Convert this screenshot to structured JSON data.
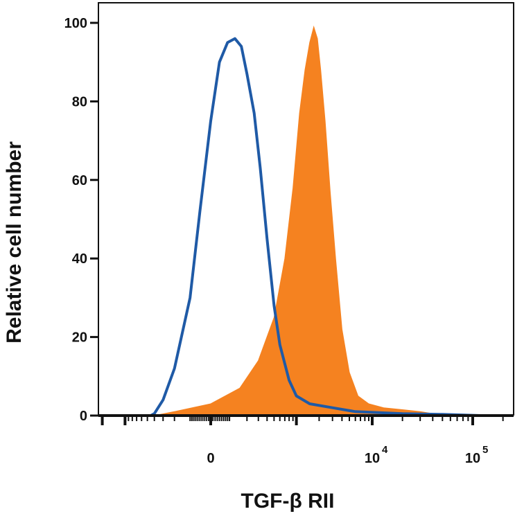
{
  "chart_data": {
    "type": "area",
    "title": "",
    "xlabel": "TGF-β RII",
    "ylabel": "Relative cell number",
    "ylim": [
      0,
      100
    ],
    "x_scale": "biexponential",
    "x_ticks": [
      {
        "value": 0,
        "label": "0",
        "exp": ""
      },
      {
        "value": 10000,
        "label": "10",
        "exp": "4"
      },
      {
        "value": 100000,
        "label": "10",
        "exp": "5"
      }
    ],
    "y_ticks": [
      0,
      20,
      40,
      60,
      80,
      100
    ],
    "grid": false,
    "legend": "none",
    "series": [
      {
        "style": "filled",
        "color": "#F58220",
        "x": [
          -400,
          -200,
          0,
          150,
          300,
          500,
          700,
          900,
          1100,
          1300,
          1500,
          1700,
          1900,
          2100,
          2400,
          2800,
          3300,
          4000,
          5000,
          6500,
          9000,
          13000,
          20000,
          30000,
          40000,
          50000
        ],
        "y": [
          0,
          1,
          3,
          7,
          14,
          25,
          40,
          58,
          77,
          88,
          95,
          99,
          96,
          88,
          75,
          57,
          40,
          22,
          11,
          5,
          3,
          2,
          1.5,
          1,
          0.5,
          0
        ]
      },
      {
        "style": "outline",
        "color": "#1F5AA6",
        "x": [
          -450,
          -400,
          -300,
          -200,
          -100,
          -50,
          0,
          40,
          80,
          120,
          160,
          200,
          260,
          320,
          400,
          500,
          600,
          800,
          1000,
          1500,
          3000,
          6000,
          20000,
          50000,
          120000
        ],
        "y": [
          0,
          0.5,
          4,
          12,
          30,
          52,
          75,
          90,
          95,
          96,
          94,
          87,
          77,
          63,
          45,
          28,
          18,
          9,
          5,
          3,
          2,
          1,
          0.5,
          0.3,
          0
        ]
      }
    ]
  }
}
